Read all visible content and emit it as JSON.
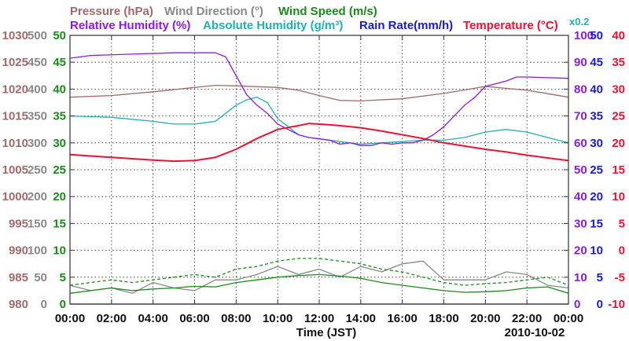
{
  "chart_data": {
    "type": "line",
    "date": "2010-10-02",
    "xlabel": "Time (JST)",
    "x_range_hours": [
      0,
      24
    ],
    "x_ticks": [
      "00:00",
      "02:00",
      "04:00",
      "06:00",
      "08:00",
      "10:00",
      "12:00",
      "14:00",
      "16:00",
      "18:00",
      "20:00",
      "22:00",
      "00:00"
    ],
    "legend_row1": [
      {
        "key": "pressure",
        "label": "Pressure (hPa)",
        "color": "#a06a6a"
      },
      {
        "key": "wind_direction",
        "label": "Wind Direction (°)",
        "color": "#888888"
      },
      {
        "key": "wind_speed",
        "label": "Wind Speed (m/s)",
        "color": "#1a8a1a"
      }
    ],
    "legend_row2": [
      {
        "key": "relative_humidity",
        "label": "Relative Humidity (%)",
        "color": "#8a1ae6"
      },
      {
        "key": "absolute_humidity",
        "label": "Absolute Humidity (g/m³)",
        "color": "#20b0b0"
      },
      {
        "key": "rain_rate",
        "label": "Rain Rate(mm/h)",
        "color": "#1a1acc"
      },
      {
        "key": "temperature",
        "label": "Temperature (°C)",
        "color": "#ee1133"
      }
    ],
    "rain_scale_note": "x0.2",
    "axes": {
      "pressure": {
        "range": [
          980,
          1030
        ],
        "ticks": [
          "1030",
          "1025",
          "1020",
          "1015",
          "1010",
          "1005",
          "1000",
          "995",
          "990",
          "985",
          "980"
        ],
        "color": "#a06a6a"
      },
      "wind_direction": {
        "range": [
          0,
          500
        ],
        "ticks": [
          "500",
          "450",
          "400",
          "350",
          "300",
          "250",
          "200",
          "150",
          "100",
          "50",
          "0"
        ],
        "color": "#888888"
      },
      "wind_speed": {
        "range": [
          0,
          50
        ],
        "ticks": [
          "50",
          "45",
          "40",
          "35",
          "30",
          "25",
          "20",
          "15",
          "10",
          "5",
          "0"
        ],
        "color": "#1a8a1a"
      },
      "relative_humidity": {
        "range": [
          0,
          100
        ],
        "ticks": [
          "100",
          "90",
          "80",
          "70",
          "60",
          "50",
          "40",
          "30",
          "20",
          "10",
          "0"
        ],
        "color": "#8a1ae6"
      },
      "rain_rate": {
        "range": [
          0,
          50
        ],
        "ticks": [
          "50",
          "45",
          "40",
          "35",
          "30",
          "25",
          "20",
          "15",
          "10",
          "5",
          "0"
        ],
        "color": "#1a1acc"
      },
      "temperature": {
        "range": [
          -10,
          40
        ],
        "ticks": [
          "40",
          "35",
          "30",
          "25",
          "20",
          "15",
          "10",
          "5",
          "0",
          "-5",
          "-10"
        ],
        "color": "#ee1133"
      }
    },
    "series": [
      {
        "key": "pressure",
        "name": "Pressure (hPa)",
        "axis": "pressure",
        "color": "#a06a6a",
        "x": [
          0,
          2,
          4,
          6,
          7,
          8,
          10,
          11,
          12,
          13,
          14,
          16,
          18,
          20,
          22,
          24
        ],
        "y": [
          1018.5,
          1018.8,
          1019.5,
          1020.3,
          1020.7,
          1020.6,
          1020.3,
          1019.8,
          1018.8,
          1017.9,
          1017.8,
          1018.2,
          1019.2,
          1020.5,
          1019.8,
          1018.5
        ]
      },
      {
        "key": "relative_humidity",
        "name": "Relative Humidity (%)",
        "axis": "relative_humidity",
        "color": "#8a1ae6",
        "x": [
          0,
          1,
          3,
          5,
          6,
          7,
          7.5,
          8,
          8.5,
          9,
          9.5,
          10,
          10.5,
          11,
          11.5,
          12,
          12.5,
          13,
          13.5,
          14,
          14.5,
          15,
          15.5,
          16,
          16.5,
          17,
          17.5,
          18,
          18.5,
          19,
          19.5,
          20,
          20.5,
          21,
          21.5,
          22,
          24
        ],
        "y": [
          91.5,
          92.5,
          93,
          93.5,
          93.5,
          93.5,
          92,
          85,
          78,
          74,
          71,
          67,
          65,
          63,
          62,
          61.5,
          61,
          59.5,
          60,
          59,
          59,
          60,
          59.5,
          60,
          60,
          61,
          63,
          66,
          70,
          74,
          77,
          81,
          82,
          83,
          84.5,
          84.5,
          84
        ]
      },
      {
        "key": "absolute_humidity",
        "name": "Absolute Humidity (g/m³)",
        "axis": "relative_humidity",
        "color": "#20b0b0",
        "x": [
          0,
          2,
          4,
          5,
          6,
          7,
          7.5,
          8,
          8.5,
          9,
          9.5,
          10,
          10.5,
          11,
          11.5,
          12,
          13,
          14,
          15,
          16,
          17,
          18,
          19,
          20,
          21,
          22,
          23,
          24
        ],
        "y": [
          70,
          69.5,
          68,
          67,
          67,
          68,
          71,
          74,
          76,
          77,
          75,
          69,
          66,
          63,
          62,
          61.5,
          60.5,
          59.5,
          60,
          60.5,
          61,
          61,
          62,
          64,
          65,
          64,
          62,
          60
        ]
      },
      {
        "key": "temperature",
        "name": "Temperature (°C)",
        "axis": "temperature",
        "color": "#ee1133",
        "x": [
          0,
          2,
          4,
          5,
          6,
          7,
          8,
          9,
          10,
          11,
          11.5,
          12,
          13,
          14,
          15,
          16,
          17,
          18,
          19,
          20,
          21,
          22,
          23,
          24
        ],
        "y": [
          17.8,
          17.3,
          16.8,
          16.6,
          16.7,
          17.3,
          18.8,
          20.8,
          22.5,
          23.2,
          23.6,
          23.5,
          23.2,
          22.8,
          22.2,
          21.5,
          20.8,
          20.0,
          19.4,
          18.8,
          18.3,
          17.7,
          17.2,
          16.7
        ]
      },
      {
        "key": "wind_direction",
        "name": "Wind Direction (°)",
        "axis": "wind_direction",
        "color": "#888888",
        "x": [
          0,
          1,
          2,
          3,
          4,
          5,
          6,
          7,
          8,
          9,
          10,
          11,
          12,
          13,
          14,
          15,
          16,
          17,
          18,
          19,
          20,
          21,
          22,
          23,
          24
        ],
        "y": [
          35,
          25,
          30,
          20,
          40,
          30,
          25,
          45,
          45,
          55,
          70,
          55,
          65,
          50,
          70,
          60,
          75,
          80,
          45,
          45,
          45,
          60,
          55,
          35,
          30
        ]
      },
      {
        "key": "wind_speed",
        "name": "Wind Speed (m/s)",
        "axis": "wind_speed",
        "color": "#1a8a1a",
        "x": [
          0,
          1,
          2,
          3,
          4,
          5,
          6,
          7,
          8,
          9,
          10,
          11,
          12,
          13,
          14,
          15,
          16,
          17,
          18,
          19,
          20,
          21,
          22,
          23,
          24
        ],
        "y": [
          2,
          2.5,
          3,
          2.5,
          2.8,
          3,
          3.3,
          3.2,
          4,
          4.5,
          5,
          5.3,
          5.5,
          5.2,
          4.8,
          4,
          3.5,
          3,
          2.5,
          2.2,
          2.3,
          2.5,
          3,
          3.2,
          2
        ]
      },
      {
        "key": "wind_speed_gust",
        "name": "Wind Speed (m/s) gust",
        "axis": "wind_speed",
        "color": "#1a8a1a",
        "x": [
          0,
          1,
          2,
          3,
          4,
          5,
          6,
          7,
          8,
          9,
          10,
          11,
          12,
          13,
          14,
          15,
          16,
          17,
          18,
          19,
          20,
          21,
          22,
          23,
          24
        ],
        "y": [
          3.5,
          4,
          4.5,
          4,
          4.5,
          5,
          5.5,
          5,
          6.5,
          7,
          8,
          8.5,
          8.5,
          8,
          7.5,
          6.5,
          6,
          5,
          4,
          3.5,
          3.8,
          4,
          4.5,
          5,
          3.5
        ]
      },
      {
        "key": "rain_rate",
        "name": "Rain Rate(mm/h)",
        "axis": "rain_rate",
        "color": "#1a1acc",
        "x": [
          0,
          24
        ],
        "y": [
          0,
          0
        ]
      }
    ]
  }
}
